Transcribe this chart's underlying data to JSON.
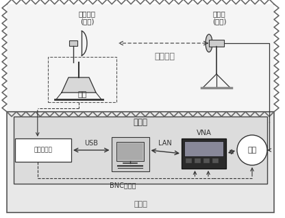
{
  "fig_width": 4.16,
  "fig_height": 3.18,
  "dpi": 100,
  "bg_color": "#ffffff",
  "chamber_label": "微波暗室",
  "control_label": "控制室",
  "dut_label1": "待测天线",
  "dut_label2": "(接收)",
  "src_label1": "源天线",
  "src_label2": "(发射)",
  "turntable_label": "转台",
  "computer_label": "计算机",
  "turntable_box_label": "转台控制笱",
  "usb_label": "USB",
  "lan_label": "LAN",
  "bnc_label": "BNC同轴线",
  "vna_label": "VNA",
  "amp_label": "功放",
  "zigzag_color": "#666666",
  "line_color": "#333333",
  "chamber_fill": "#f5f5f5",
  "control_fill": "#e8e8e8"
}
